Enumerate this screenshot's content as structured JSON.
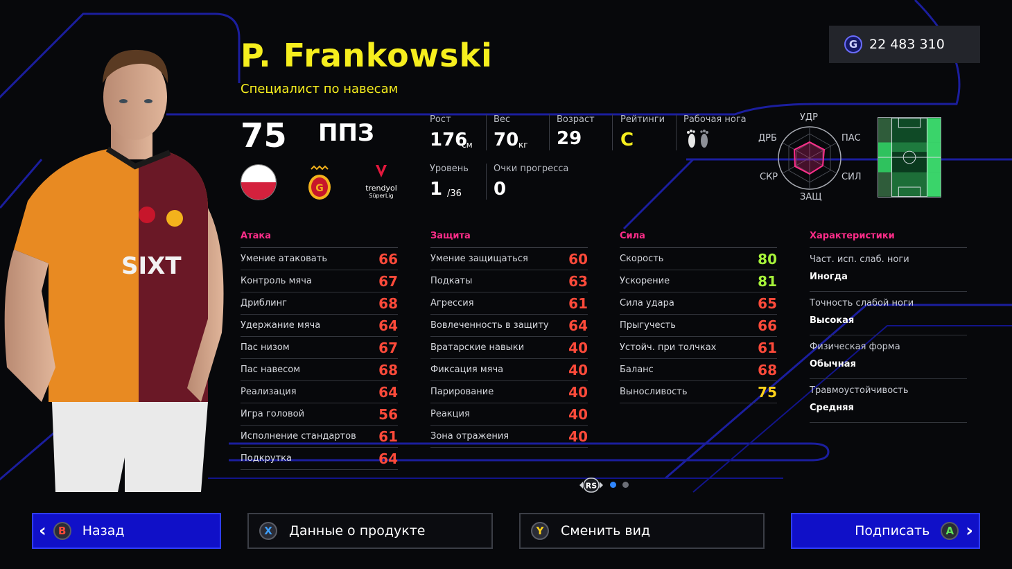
{
  "header": {
    "player_name": "P. Frankowski",
    "playstyle": "Специалист по навесам",
    "coins": "22 483 310",
    "coin_icon": "G"
  },
  "player": {
    "overall": "75",
    "position": "ППЗ",
    "nationality_flag": "poland-flag-icon",
    "club_badge": "galatasaray-crest-icon",
    "league_logo": {
      "line1": "trendyol",
      "line2": "SüperLig"
    }
  },
  "info": {
    "height": {
      "label": "Рост",
      "value": "176",
      "unit": "см"
    },
    "weight": {
      "label": "Вес",
      "value": "70",
      "unit": "кг"
    },
    "age": {
      "label": "Возраст",
      "value": "29"
    },
    "ratings": {
      "label": "Рейтинги",
      "value": "C"
    },
    "foot": {
      "label": "Рабочая нога",
      "icon": "feet-icon"
    },
    "level": {
      "label": "Уровень",
      "value": "1",
      "max": "/36"
    },
    "progress": {
      "label": "Очки прогресса",
      "value": "0"
    }
  },
  "radar": {
    "labels": {
      "top": "УДР",
      "top_right": "ПАС",
      "bottom_right": "СИЛ",
      "bottom": "ЗАЩ",
      "bottom_left": "СКР",
      "top_left": "ДРБ"
    }
  },
  "stats": {
    "attack": {
      "title": "Атака",
      "rows": [
        {
          "name": "Умение атаковать",
          "value": "66"
        },
        {
          "name": "Контроль мяча",
          "value": "67"
        },
        {
          "name": "Дриблинг",
          "value": "68"
        },
        {
          "name": "Удержание мяча",
          "value": "64"
        },
        {
          "name": "Пас низом",
          "value": "67"
        },
        {
          "name": "Пас навесом",
          "value": "68"
        },
        {
          "name": "Реализация",
          "value": "64"
        },
        {
          "name": "Игра головой",
          "value": "56"
        },
        {
          "name": "Исполнение стандартов",
          "value": "61"
        },
        {
          "name": "Подкрутка",
          "value": "64"
        }
      ]
    },
    "defense": {
      "title": "Защита",
      "rows": [
        {
          "name": "Умение защищаться",
          "value": "60"
        },
        {
          "name": "Подкаты",
          "value": "63"
        },
        {
          "name": "Агрессия",
          "value": "61"
        },
        {
          "name": "Вовлеченность в защиту",
          "value": "64"
        },
        {
          "name": "Вратарские навыки",
          "value": "40"
        },
        {
          "name": "Фиксация мяча",
          "value": "40"
        },
        {
          "name": "Парирование",
          "value": "40"
        },
        {
          "name": "Реакция",
          "value": "40"
        },
        {
          "name": "Зона отражения",
          "value": "40"
        }
      ]
    },
    "physical": {
      "title": "Сила",
      "rows": [
        {
          "name": "Скорость",
          "value": "80"
        },
        {
          "name": "Ускорение",
          "value": "81"
        },
        {
          "name": "Сила удара",
          "value": "65"
        },
        {
          "name": "Прыгучесть",
          "value": "66"
        },
        {
          "name": "Устойч. при толчках",
          "value": "61"
        },
        {
          "name": "Баланс",
          "value": "68"
        },
        {
          "name": "Выносливость",
          "value": "75"
        }
      ]
    },
    "characteristics": {
      "title": "Характеристики",
      "items": [
        {
          "label": "Част. исп. слаб. ноги",
          "value": "Иногда"
        },
        {
          "label": "Точность слабой ноги",
          "value": "Высокая"
        },
        {
          "label": "Физическая форма",
          "value": "Обычная"
        },
        {
          "label": "Травмоустойчивость",
          "value": "Средняя"
        }
      ]
    }
  },
  "stat_colors": {
    "red": "#ff4a3a",
    "orange": "#ff9a1f",
    "yellow": "#ffd21a",
    "green": "#a6f23a"
  },
  "pagination": {
    "stick": "RS",
    "pages": 2,
    "current": 1
  },
  "buttons": {
    "back": {
      "label": "Назад",
      "key": "B"
    },
    "product": {
      "label": "Данные о продукте",
      "key": "X"
    },
    "view": {
      "label": "Сменить вид",
      "key": "Y"
    },
    "sign": {
      "label": "Подписать",
      "key": "A"
    }
  },
  "colors": {
    "accent_yellow": "#f6ee1e",
    "section_pink": "#ff2d8a",
    "button_blue": "#1010c8"
  }
}
